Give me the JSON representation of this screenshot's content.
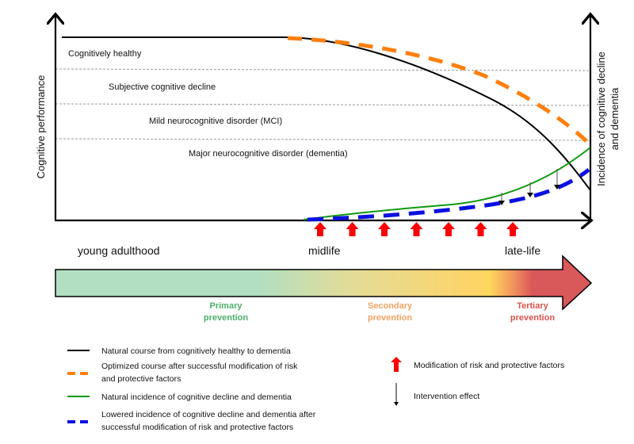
{
  "axes": {
    "y_left_label": "Cognitive performance",
    "y_right_label_line1": "Incidence of cognitive decline",
    "y_right_label_line2": "and dementia"
  },
  "stages": [
    {
      "label": "Cognitively healthy"
    },
    {
      "label": "Subjective cognitive decline"
    },
    {
      "label": "Mild neurocognitive disorder (MCI)"
    },
    {
      "label": "Major neurocognitive disorder (dementia)"
    }
  ],
  "life_phases": [
    {
      "label": "young adulthood"
    },
    {
      "label": "midlife"
    },
    {
      "label": "late-life"
    }
  ],
  "prevention": [
    {
      "line1": "Primary",
      "line2": "prevention",
      "color": "#4caf6a"
    },
    {
      "line1": "Secondary",
      "line2": "prevention",
      "color": "#f4a261"
    },
    {
      "line1": "Tertiary",
      "line2": "prevention",
      "color": "#d9534f"
    }
  ],
  "colors": {
    "natural_course": "#000000",
    "optimized_course": "#ff7f0e",
    "natural_incidence": "#119911",
    "lowered_incidence": "#0a10e0",
    "modification_arrow": "#ff0000",
    "gradient_green": "#b2dfc2",
    "gradient_yellow": "#fdd85d",
    "gradient_red": "#d9585a"
  },
  "legend": {
    "left": [
      {
        "style": "solid-black",
        "line1": "Natural course from cognitively healthy to dementia",
        "line2": ""
      },
      {
        "style": "dashed-orange",
        "line1": "Optimized course after successful modification of risk",
        "line2": "and protective factors"
      },
      {
        "style": "solid-green",
        "line1": "Natural incidence of cognitive decline and dementia",
        "line2": ""
      },
      {
        "style": "dashed-blue",
        "line1": "Lowered incidence of cognitive decline and dementia after",
        "line2": "successful modification of risk and protective factors"
      }
    ],
    "right": [
      {
        "symbol": "red-up-arrow",
        "label": "Modification of risk and protective factors"
      },
      {
        "symbol": "down-arrow",
        "label": "Intervention effect"
      }
    ]
  },
  "modification_arrow_count": 7,
  "intervention_arrow_count": 4
}
